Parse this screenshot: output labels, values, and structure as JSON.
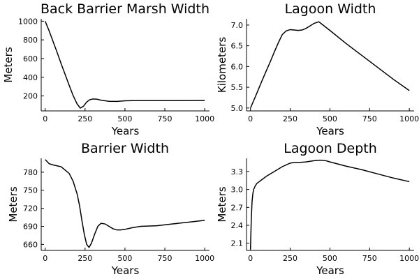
{
  "chart_data": [
    {
      "type": "line",
      "title": "Back Barrier Marsh Width",
      "xlabel": "Years",
      "ylabel": "Meters",
      "xlim": [
        -25,
        1030
      ],
      "ylim": [
        40,
        1025
      ],
      "xticks": [
        0,
        250,
        500,
        750,
        1000
      ],
      "xtick_labels": [
        "0",
        "250",
        "500",
        "750",
        "1000"
      ],
      "yticks": [
        200,
        400,
        600,
        800,
        1000
      ],
      "ytick_labels": [
        "200",
        "400",
        "600",
        "800",
        "1000"
      ],
      "x": [
        0,
        25,
        50,
        75,
        100,
        125,
        150,
        175,
        200,
        220,
        240,
        260,
        280,
        300,
        325,
        350,
        400,
        450,
        500,
        550,
        600,
        700,
        800,
        900,
        1000
      ],
      "y": [
        1000,
        895,
        780,
        665,
        545,
        430,
        315,
        205,
        115,
        70,
        90,
        135,
        160,
        168,
        165,
        155,
        143,
        142,
        148,
        150,
        150,
        150,
        150,
        151,
        152
      ]
    },
    {
      "type": "line",
      "title": "Lagoon Width",
      "xlabel": "Years",
      "ylabel": "Kilometers",
      "xlim": [
        -25,
        1030
      ],
      "ylim": [
        4.93,
        7.15
      ],
      "xticks": [
        0,
        250,
        500,
        750,
        1000
      ],
      "xtick_labels": [
        "0",
        "250",
        "500",
        "750",
        "1000"
      ],
      "yticks": [
        5.0,
        5.5,
        6.0,
        6.5,
        7.0
      ],
      "ytick_labels": [
        "5.0",
        "5.5",
        "6.0",
        "6.5",
        "7.0"
      ],
      "x": [
        0,
        25,
        50,
        75,
        100,
        125,
        150,
        175,
        200,
        225,
        250,
        275,
        300,
        325,
        350,
        375,
        400,
        430,
        450,
        500,
        600,
        700,
        800,
        900,
        1000
      ],
      "y": [
        5.0,
        5.22,
        5.45,
        5.68,
        5.9,
        6.12,
        6.35,
        6.57,
        6.77,
        6.86,
        6.89,
        6.88,
        6.87,
        6.88,
        6.92,
        6.98,
        7.04,
        7.08,
        7.02,
        6.87,
        6.56,
        6.27,
        5.98,
        5.69,
        5.42
      ]
    },
    {
      "type": "line",
      "title": "Barrier Width",
      "xlabel": "Years",
      "ylabel": "Meters",
      "xlim": [
        -25,
        1030
      ],
      "ylim": [
        650,
        803
      ],
      "xticks": [
        0,
        250,
        500,
        750,
        1000
      ],
      "xtick_labels": [
        "0",
        "250",
        "500",
        "750",
        "1000"
      ],
      "yticks": [
        660,
        690,
        720,
        750,
        780
      ],
      "ytick_labels": [
        "660",
        "690",
        "720",
        "750",
        "780"
      ],
      "x": [
        0,
        25,
        50,
        100,
        150,
        175,
        200,
        215,
        230,
        245,
        260,
        275,
        290,
        310,
        330,
        350,
        375,
        400,
        425,
        450,
        475,
        500,
        550,
        600,
        700,
        800,
        900,
        1000
      ],
      "y": [
        801,
        794,
        792,
        789,
        778,
        765,
        744,
        725,
        700,
        677,
        660,
        655,
        662,
        677,
        690,
        695,
        694,
        690,
        686,
        684,
        684,
        685,
        688,
        690,
        691,
        694,
        697,
        700
      ]
    },
    {
      "type": "line",
      "title": "Lagoon Depth",
      "xlabel": "Years",
      "ylabel": "Meters",
      "xlim": [
        -25,
        1030
      ],
      "ylim": [
        1.98,
        3.52
      ],
      "xticks": [
        0,
        250,
        500,
        750,
        1000
      ],
      "xtick_labels": [
        "0",
        "250",
        "500",
        "750",
        "1000"
      ],
      "yticks": [
        2.1,
        2.4,
        2.7,
        3.0,
        3.3
      ],
      "ytick_labels": [
        "2.1",
        "2.4",
        "2.7",
        "3.0",
        "3.3"
      ],
      "x": [
        0,
        5,
        10,
        15,
        20,
        30,
        40,
        50,
        75,
        100,
        150,
        200,
        250,
        275,
        300,
        350,
        400,
        440,
        475,
        500,
        600,
        700,
        800,
        900,
        1000
      ],
      "y": [
        2.0,
        2.5,
        2.8,
        2.93,
        3.0,
        3.06,
        3.1,
        3.12,
        3.17,
        3.22,
        3.3,
        3.38,
        3.44,
        3.45,
        3.45,
        3.46,
        3.48,
        3.49,
        3.48,
        3.46,
        3.39,
        3.33,
        3.26,
        3.19,
        3.13
      ]
    }
  ]
}
